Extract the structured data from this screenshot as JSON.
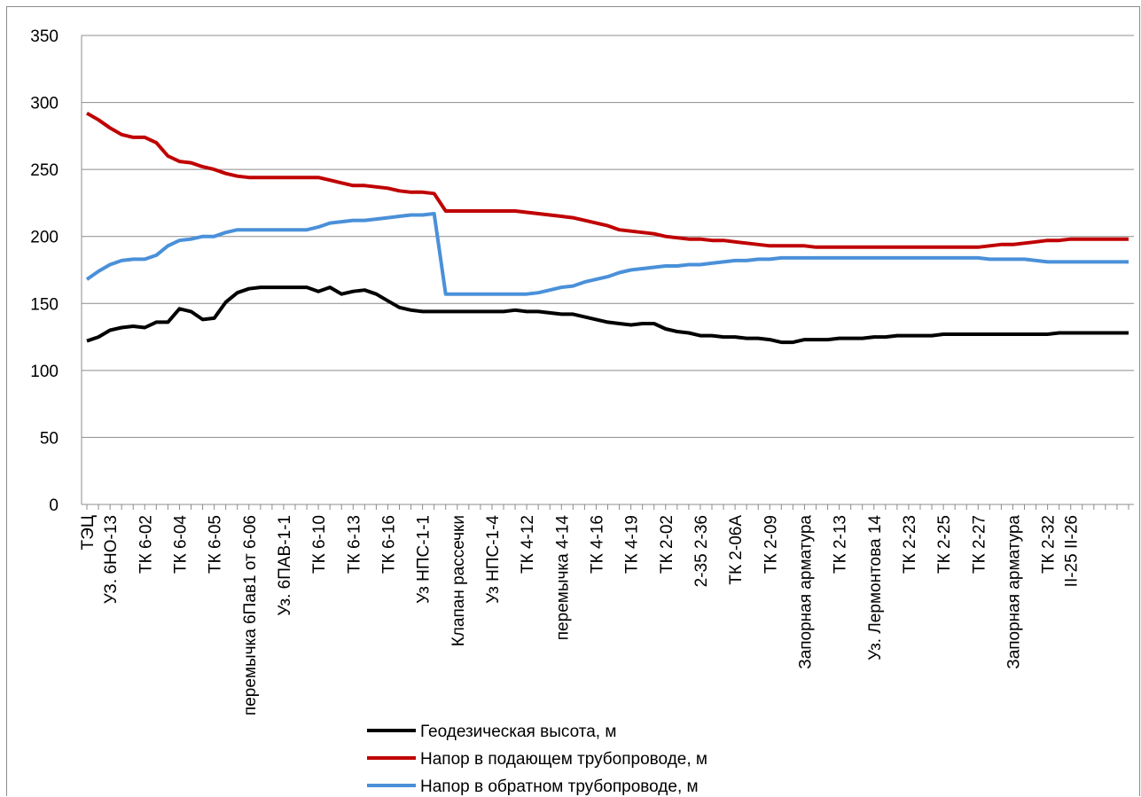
{
  "chart_data": {
    "type": "line",
    "title": "",
    "xlabel": "",
    "ylabel": "",
    "ylim": [
      0,
      350
    ],
    "yticks": [
      0,
      50,
      100,
      150,
      200,
      250,
      300,
      350
    ],
    "grid": true,
    "legend_position": "bottom",
    "tick_labels": [
      {
        "index": 0,
        "label": "ТЭЦ"
      },
      {
        "index": 2,
        "label": "УЗ. 6НО-13"
      },
      {
        "index": 5,
        "label": "ТК 6-02"
      },
      {
        "index": 8,
        "label": "ТК 6-04"
      },
      {
        "index": 11,
        "label": "ТК 6-05"
      },
      {
        "index": 14,
        "label": "перемычка 6Пав1 от 6-06"
      },
      {
        "index": 17,
        "label": "Уз. 6ПАВ-1-1"
      },
      {
        "index": 20,
        "label": "ТК 6-10"
      },
      {
        "index": 23,
        "label": "ТК 6-13"
      },
      {
        "index": 26,
        "label": "ТК 6-16"
      },
      {
        "index": 29,
        "label": "Уз НПС-1-1"
      },
      {
        "index": 32,
        "label": "Клапан рассечки"
      },
      {
        "index": 35,
        "label": "Уз НПС-1-4"
      },
      {
        "index": 38,
        "label": "ТК 4-12"
      },
      {
        "index": 41,
        "label": "перемычка 4-14"
      },
      {
        "index": 44,
        "label": "ТК 4-16"
      },
      {
        "index": 47,
        "label": "ТК 4-19"
      },
      {
        "index": 50,
        "label": "ТК 2-02"
      },
      {
        "index": 53,
        "label": "2-35 2-36"
      },
      {
        "index": 56,
        "label": "ТК 2-06А"
      },
      {
        "index": 59,
        "label": "ТК 2-09"
      },
      {
        "index": 62,
        "label": "Запорная арматура"
      },
      {
        "index": 65,
        "label": "ТК 2-13"
      },
      {
        "index": 68,
        "label": "Уз. Лермонтова 14"
      },
      {
        "index": 71,
        "label": "ТК 2-23"
      },
      {
        "index": 74,
        "label": "ТК 2-25"
      },
      {
        "index": 77,
        "label": "ТК 2-27"
      },
      {
        "index": 80,
        "label": "Запорная арматура"
      },
      {
        "index": 83,
        "label": "ТК 2-32"
      },
      {
        "index": 85,
        "label": "II-25 II-26"
      }
    ],
    "series": [
      {
        "name": "Геодезическая высота, м",
        "color": "#000000",
        "values": [
          122,
          125,
          130,
          132,
          133,
          132,
          136,
          136,
          146,
          144,
          138,
          139,
          151,
          158,
          161,
          162,
          162,
          162,
          162,
          162,
          159,
          162,
          157,
          159,
          160,
          157,
          152,
          147,
          145,
          144,
          144,
          144,
          144,
          144,
          144,
          144,
          144,
          145,
          144,
          144,
          143,
          142,
          142,
          140,
          138,
          136,
          135,
          134,
          135,
          135,
          131,
          129,
          128,
          126,
          126,
          125,
          125,
          124,
          124,
          123,
          121,
          121,
          123,
          123,
          123,
          124,
          124,
          124,
          125,
          125,
          126,
          126,
          126,
          126,
          127,
          127,
          127,
          127,
          127,
          127,
          127,
          127,
          127,
          127,
          128,
          128,
          128,
          128,
          128,
          128,
          128
        ]
      },
      {
        "name": "Напор в подающем трубопроводе, м",
        "color": "#c00000",
        "values": [
          292,
          287,
          281,
          276,
          274,
          274,
          270,
          260,
          256,
          255,
          252,
          250,
          247,
          245,
          244,
          244,
          244,
          244,
          244,
          244,
          244,
          242,
          240,
          238,
          238,
          237,
          236,
          234,
          233,
          233,
          232,
          219,
          219,
          219,
          219,
          219,
          219,
          219,
          218,
          217,
          216,
          215,
          214,
          212,
          210,
          208,
          205,
          204,
          203,
          202,
          200,
          199,
          198,
          198,
          197,
          197,
          196,
          195,
          194,
          193,
          193,
          193,
          193,
          192,
          192,
          192,
          192,
          192,
          192,
          192,
          192,
          192,
          192,
          192,
          192,
          192,
          192,
          192,
          193,
          194,
          194,
          195,
          196,
          197,
          197,
          198,
          198,
          198,
          198,
          198,
          198
        ]
      },
      {
        "name": "Напор в обратном трубопроводе, м",
        "color": "#4a90d9",
        "values": [
          168,
          174,
          179,
          182,
          183,
          183,
          186,
          193,
          197,
          198,
          200,
          200,
          203,
          205,
          205,
          205,
          205,
          205,
          205,
          205,
          207,
          210,
          211,
          212,
          212,
          213,
          214,
          215,
          216,
          216,
          217,
          157,
          157,
          157,
          157,
          157,
          157,
          157,
          157,
          158,
          160,
          162,
          163,
          166,
          168,
          170,
          173,
          175,
          176,
          177,
          178,
          178,
          179,
          179,
          180,
          181,
          182,
          182,
          183,
          183,
          184,
          184,
          184,
          184,
          184,
          184,
          184,
          184,
          184,
          184,
          184,
          184,
          184,
          184,
          184,
          184,
          184,
          184,
          183,
          183,
          183,
          183,
          182,
          181,
          181,
          181,
          181,
          181,
          181,
          181,
          181
        ]
      }
    ]
  }
}
